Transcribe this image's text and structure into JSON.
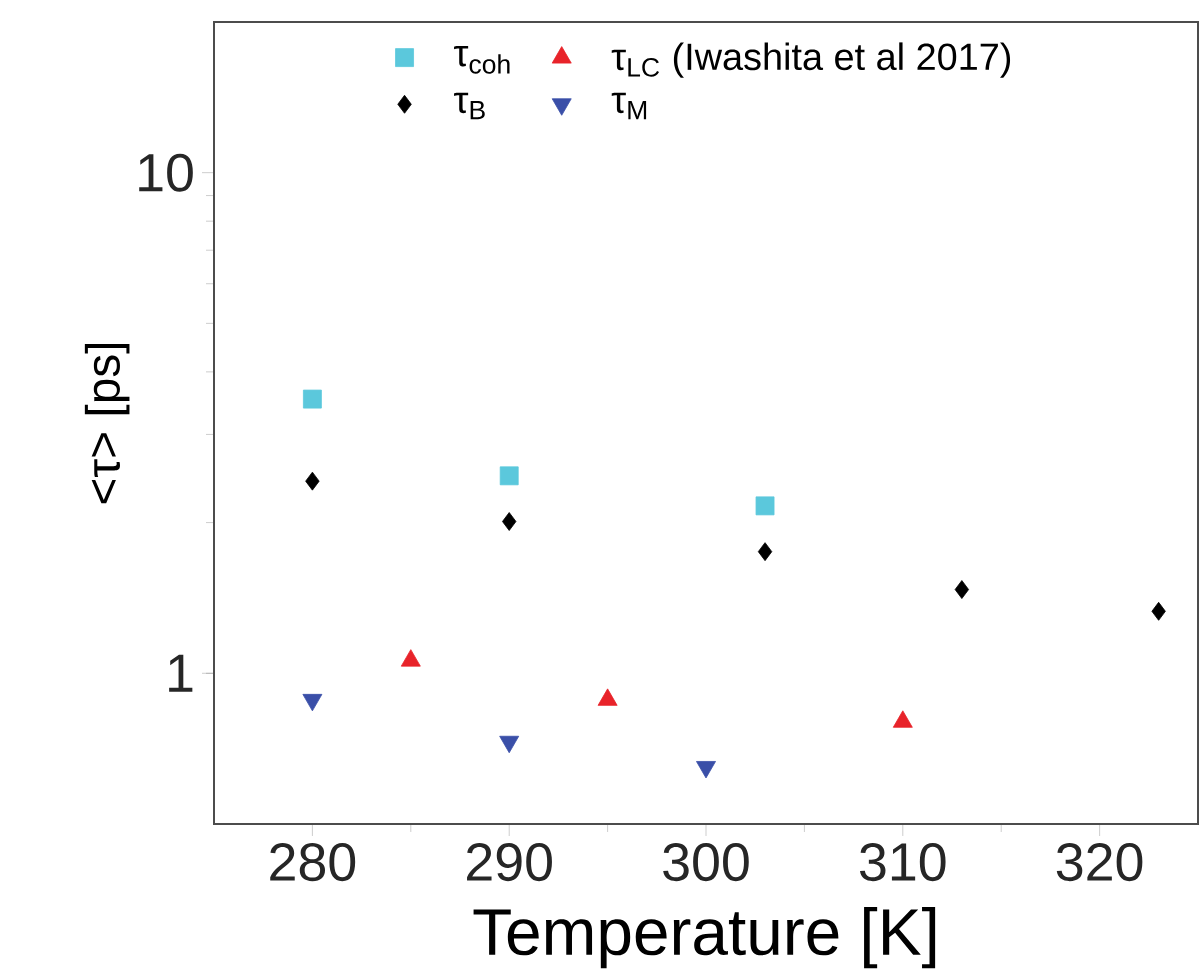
{
  "chart_data": {
    "type": "scatter",
    "xlabel": "Temperature [K]",
    "ylabel": "<τ> [ps]",
    "xlim": [
      275,
      325
    ],
    "xticks": [
      280,
      290,
      300,
      310,
      320
    ],
    "ylim": [
      0.5,
      20
    ],
    "yticks": [
      1,
      10
    ],
    "log": "y",
    "legend": "top",
    "series": [
      {
        "name": "τ$_{coh}$",
        "color": "#5bc8dc",
        "marker": "square",
        "x": [
          280,
          290,
          303
        ],
        "values": [
          3.53,
          2.48,
          2.16
        ]
      },
      {
        "name": "τ$_{LC}$ (Iwashita et al 2017)",
        "color": "#e8232a",
        "marker": "triangle",
        "x": [
          285,
          295,
          310
        ],
        "values": [
          1.06,
          0.885,
          0.8
        ]
      },
      {
        "name": "τ$_{B}$",
        "color": "#000000",
        "marker": "diamond",
        "x": [
          280,
          290,
          303,
          313,
          323
        ],
        "values": [
          2.42,
          2.01,
          1.75,
          1.47,
          1.33
        ]
      },
      {
        "name": "τ$_{M}$",
        "color": "#3a4fa8",
        "marker": "triangle-down",
        "x": [
          280,
          290,
          300
        ],
        "values": [
          0.885,
          0.73,
          0.65
        ]
      }
    ]
  }
}
